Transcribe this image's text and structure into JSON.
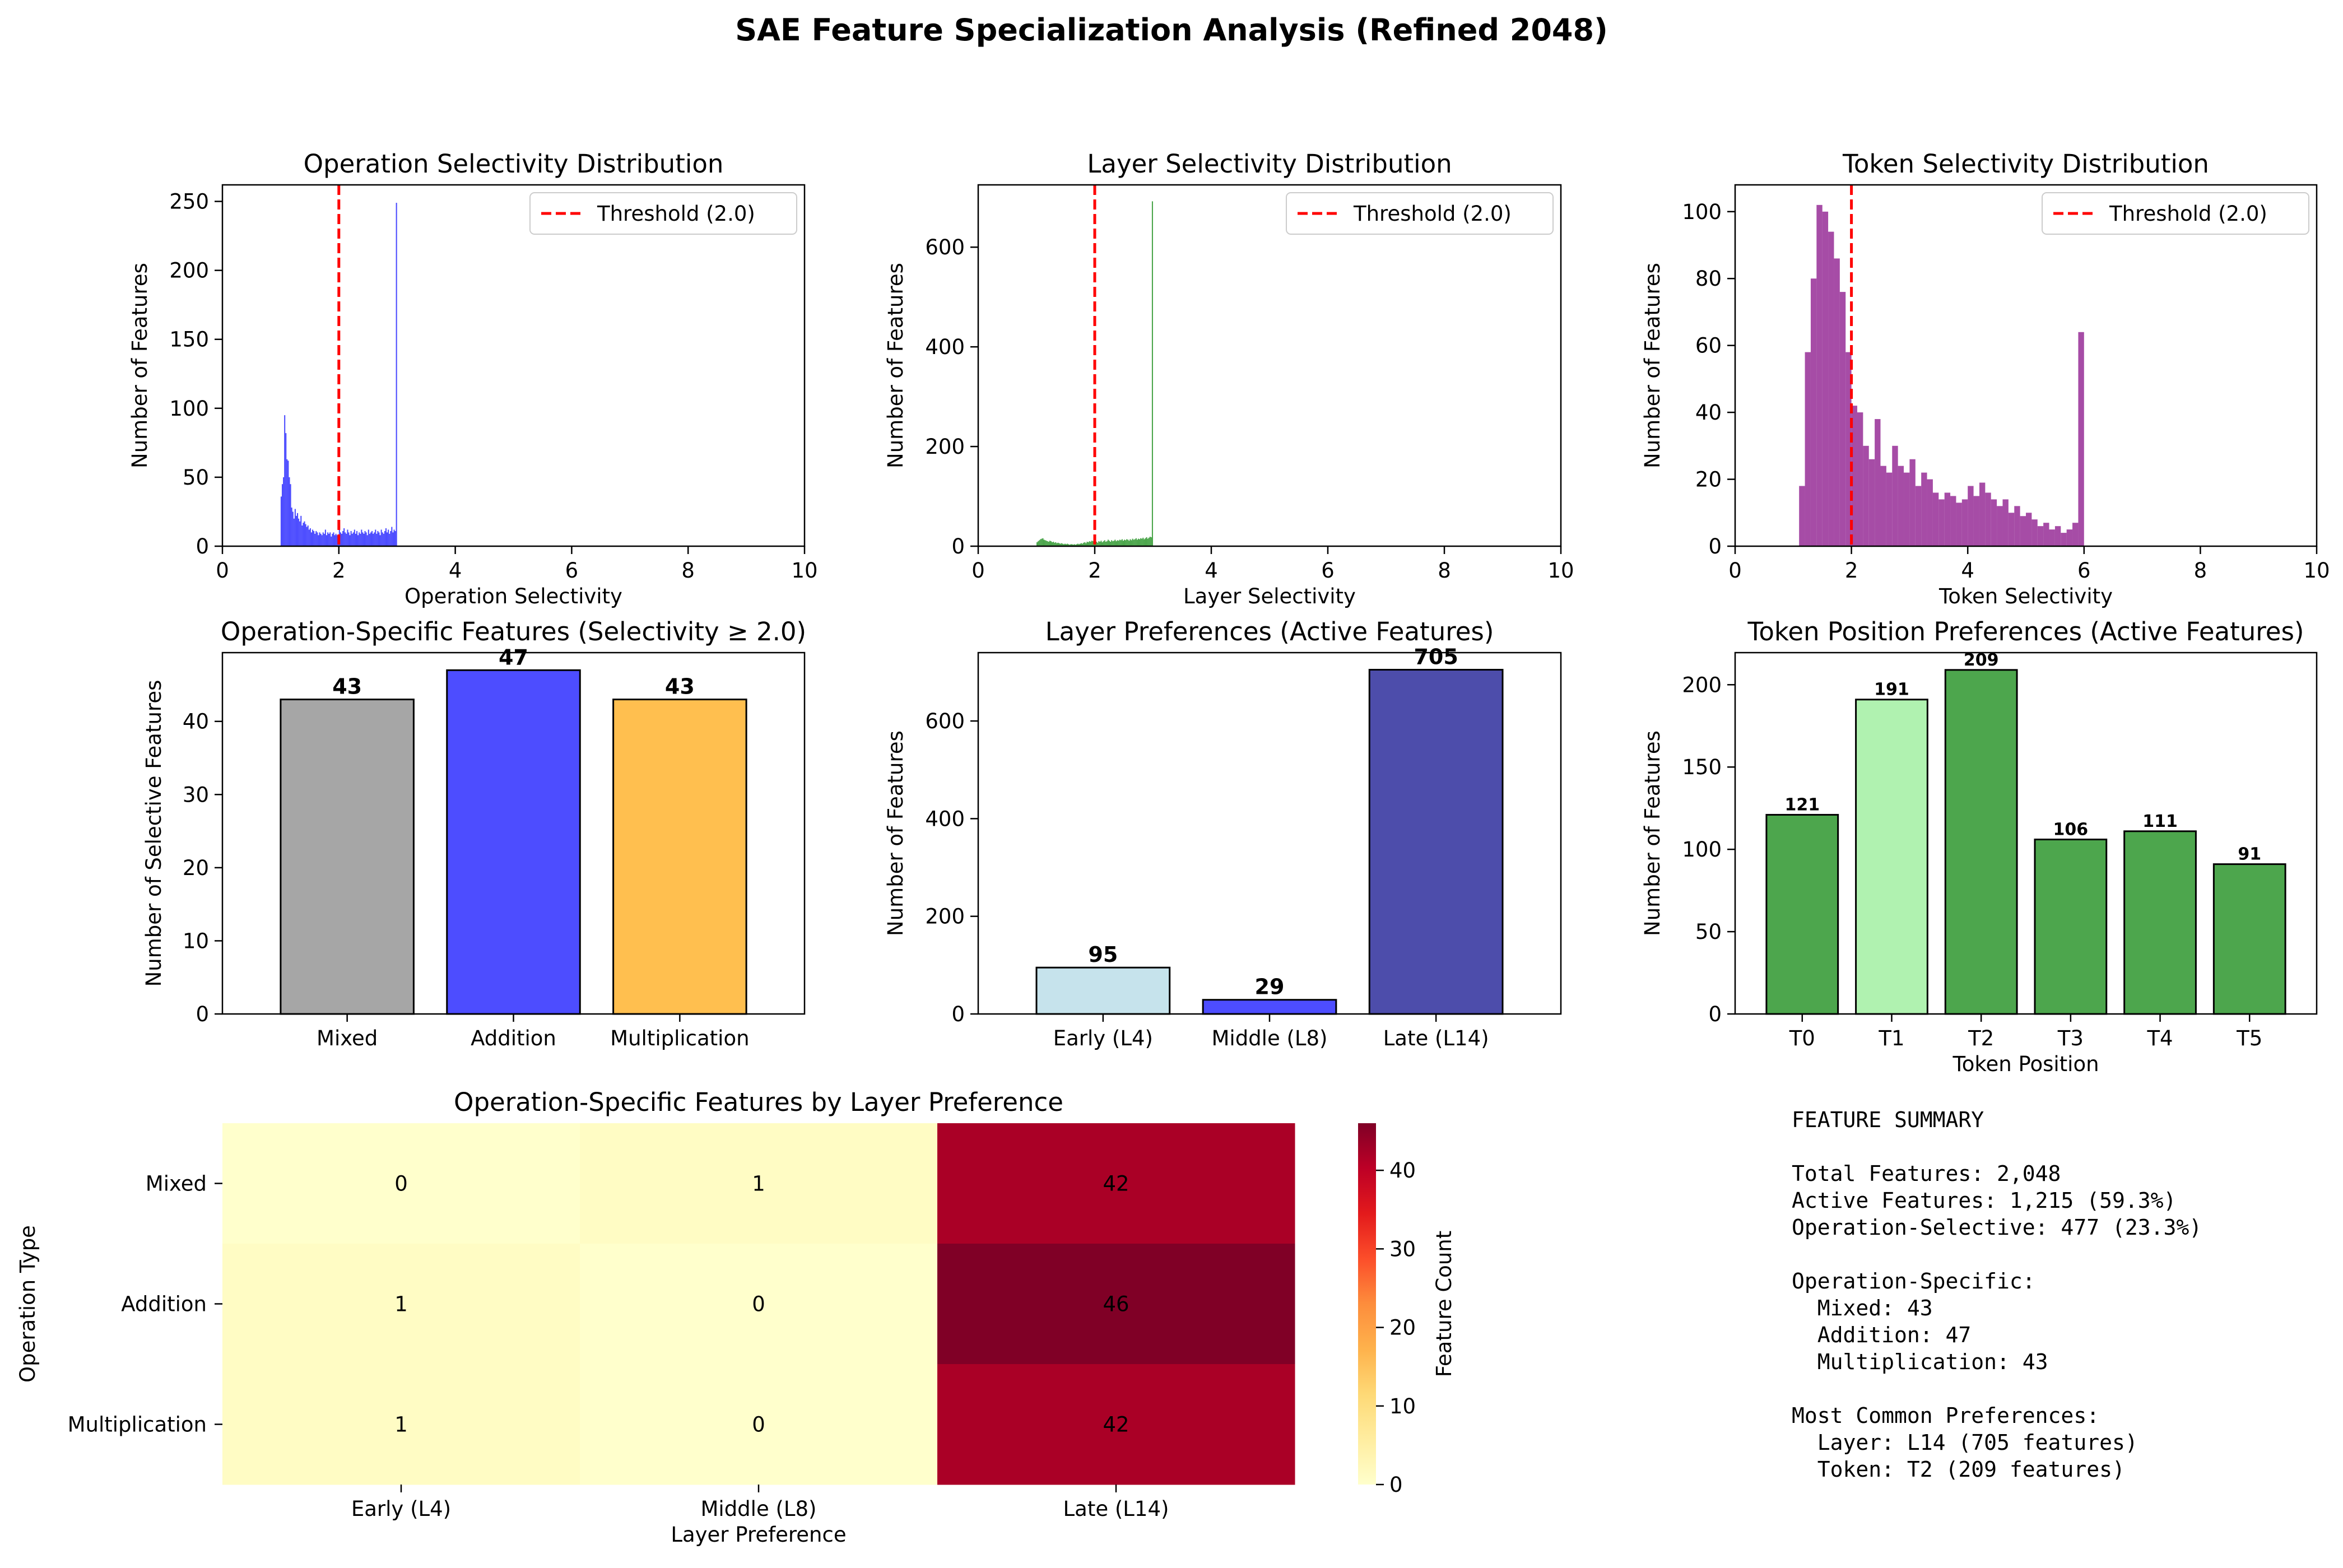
{
  "title": "SAE Feature Specialization Analysis (Refined 2048)",
  "colors": {
    "threshold": "#ff0000",
    "heat_low": "#ffffcc",
    "heat_high": "#800026"
  },
  "chart_data": [
    {
      "type": "bar",
      "subtype": "histogram",
      "title": "Operation Selectivity Distribution",
      "xlabel": "Operation Selectivity",
      "ylabel": "Number of Features",
      "xlim": [
        0,
        10
      ],
      "ylim": [
        0,
        262
      ],
      "xticks": [
        0,
        2,
        4,
        6,
        8,
        10
      ],
      "yticks": [
        0,
        50,
        100,
        150,
        200,
        250
      ],
      "color": "#0000ff",
      "threshold": {
        "x": 2.0,
        "label": "Threshold (2.0)"
      },
      "legend": "top-right",
      "bins": [
        [
          1.0,
          36
        ],
        [
          1.02,
          45
        ],
        [
          1.04,
          50
        ],
        [
          1.06,
          95
        ],
        [
          1.08,
          82
        ],
        [
          1.1,
          63
        ],
        [
          1.12,
          62
        ],
        [
          1.14,
          50
        ],
        [
          1.16,
          45
        ],
        [
          1.18,
          28
        ],
        [
          1.2,
          25
        ],
        [
          1.22,
          20
        ],
        [
          1.24,
          27
        ],
        [
          1.26,
          22
        ],
        [
          1.28,
          24
        ],
        [
          1.3,
          20
        ],
        [
          1.32,
          18
        ],
        [
          1.34,
          22
        ],
        [
          1.36,
          15
        ],
        [
          1.38,
          17
        ],
        [
          1.4,
          18
        ],
        [
          1.42,
          16
        ],
        [
          1.44,
          14
        ],
        [
          1.46,
          15
        ],
        [
          1.48,
          12
        ],
        [
          1.5,
          13
        ],
        [
          1.52,
          10
        ],
        [
          1.54,
          12
        ],
        [
          1.56,
          11
        ],
        [
          1.58,
          9
        ],
        [
          1.6,
          11
        ],
        [
          1.62,
          10
        ],
        [
          1.64,
          8
        ],
        [
          1.66,
          10
        ],
        [
          1.68,
          9
        ],
        [
          1.7,
          8
        ],
        [
          1.72,
          10
        ],
        [
          1.74,
          9
        ],
        [
          1.76,
          12
        ],
        [
          1.78,
          8
        ],
        [
          1.8,
          10
        ],
        [
          1.82,
          9
        ],
        [
          1.84,
          10
        ],
        [
          1.86,
          7
        ],
        [
          1.88,
          9
        ],
        [
          1.9,
          10
        ],
        [
          1.92,
          8
        ],
        [
          1.94,
          9
        ],
        [
          1.96,
          8
        ],
        [
          1.98,
          7
        ],
        [
          2.0,
          12
        ],
        [
          2.02,
          10
        ],
        [
          2.04,
          9
        ],
        [
          2.06,
          11
        ],
        [
          2.08,
          13
        ],
        [
          2.1,
          10
        ],
        [
          2.12,
          9
        ],
        [
          2.14,
          12
        ],
        [
          2.16,
          10
        ],
        [
          2.18,
          8
        ],
        [
          2.2,
          11
        ],
        [
          2.22,
          9
        ],
        [
          2.24,
          10
        ],
        [
          2.26,
          12
        ],
        [
          2.28,
          9
        ],
        [
          2.3,
          11
        ],
        [
          2.32,
          8
        ],
        [
          2.34,
          10
        ],
        [
          2.36,
          9
        ],
        [
          2.38,
          12
        ],
        [
          2.4,
          10
        ],
        [
          2.42,
          9
        ],
        [
          2.44,
          11
        ],
        [
          2.46,
          10
        ],
        [
          2.48,
          8
        ],
        [
          2.5,
          12
        ],
        [
          2.52,
          9
        ],
        [
          2.54,
          10
        ],
        [
          2.56,
          11
        ],
        [
          2.58,
          9
        ],
        [
          2.6,
          10
        ],
        [
          2.62,
          12
        ],
        [
          2.64,
          9
        ],
        [
          2.66,
          11
        ],
        [
          2.68,
          10
        ],
        [
          2.7,
          8
        ],
        [
          2.72,
          12
        ],
        [
          2.74,
          10
        ],
        [
          2.76,
          9
        ],
        [
          2.78,
          11
        ],
        [
          2.8,
          13
        ],
        [
          2.82,
          10
        ],
        [
          2.84,
          12
        ],
        [
          2.86,
          9
        ],
        [
          2.88,
          11
        ],
        [
          2.9,
          14
        ],
        [
          2.92,
          10
        ],
        [
          2.94,
          12
        ],
        [
          2.96,
          11
        ],
        [
          2.98,
          249
        ]
      ]
    },
    {
      "type": "bar",
      "subtype": "histogram",
      "title": "Layer Selectivity Distribution",
      "xlabel": "Layer Selectivity",
      "ylabel": "Number of Features",
      "xlim": [
        0,
        10
      ],
      "ylim": [
        0,
        725
      ],
      "xticks": [
        0,
        2,
        4,
        6,
        8,
        10
      ],
      "yticks": [
        0,
        200,
        400,
        600
      ],
      "color": "#008000",
      "threshold": {
        "x": 2.0,
        "label": "Threshold (2.0)"
      },
      "legend": "top-right",
      "bins": [
        [
          1.0,
          8
        ],
        [
          1.02,
          10
        ],
        [
          1.04,
          12
        ],
        [
          1.06,
          14
        ],
        [
          1.08,
          15
        ],
        [
          1.1,
          16
        ],
        [
          1.12,
          13
        ],
        [
          1.14,
          12
        ],
        [
          1.16,
          11
        ],
        [
          1.18,
          10
        ],
        [
          1.2,
          9
        ],
        [
          1.22,
          11
        ],
        [
          1.24,
          10
        ],
        [
          1.26,
          8
        ],
        [
          1.28,
          9
        ],
        [
          1.3,
          7
        ],
        [
          1.32,
          8
        ],
        [
          1.34,
          6
        ],
        [
          1.36,
          7
        ],
        [
          1.38,
          6
        ],
        [
          1.4,
          5
        ],
        [
          1.42,
          6
        ],
        [
          1.44,
          5
        ],
        [
          1.46,
          4
        ],
        [
          1.48,
          5
        ],
        [
          1.5,
          4
        ],
        [
          1.52,
          5
        ],
        [
          1.54,
          4
        ],
        [
          1.56,
          3
        ],
        [
          1.58,
          4
        ],
        [
          1.6,
          4
        ],
        [
          1.62,
          3
        ],
        [
          1.64,
          4
        ],
        [
          1.66,
          3
        ],
        [
          1.68,
          4
        ],
        [
          1.7,
          5
        ],
        [
          1.72,
          4
        ],
        [
          1.74,
          5
        ],
        [
          1.76,
          6
        ],
        [
          1.78,
          5
        ],
        [
          1.8,
          7
        ],
        [
          1.82,
          8
        ],
        [
          1.84,
          6
        ],
        [
          1.86,
          9
        ],
        [
          1.88,
          8
        ],
        [
          1.9,
          10
        ],
        [
          1.92,
          9
        ],
        [
          1.94,
          11
        ],
        [
          1.96,
          10
        ],
        [
          1.98,
          12
        ],
        [
          2.0,
          8
        ],
        [
          2.02,
          9
        ],
        [
          2.04,
          7
        ],
        [
          2.06,
          10
        ],
        [
          2.08,
          9
        ],
        [
          2.1,
          11
        ],
        [
          2.12,
          8
        ],
        [
          2.14,
          10
        ],
        [
          2.16,
          12
        ],
        [
          2.18,
          9
        ],
        [
          2.2,
          10
        ],
        [
          2.22,
          13
        ],
        [
          2.24,
          11
        ],
        [
          2.26,
          9
        ],
        [
          2.28,
          12
        ],
        [
          2.3,
          10
        ],
        [
          2.32,
          11
        ],
        [
          2.34,
          13
        ],
        [
          2.36,
          10
        ],
        [
          2.38,
          12
        ],
        [
          2.4,
          11
        ],
        [
          2.42,
          13
        ],
        [
          2.44,
          12
        ],
        [
          2.46,
          14
        ],
        [
          2.48,
          11
        ],
        [
          2.5,
          13
        ],
        [
          2.52,
          12
        ],
        [
          2.54,
          14
        ],
        [
          2.56,
          13
        ],
        [
          2.58,
          11
        ],
        [
          2.6,
          14
        ],
        [
          2.62,
          12
        ],
        [
          2.64,
          15
        ],
        [
          2.66,
          13
        ],
        [
          2.68,
          14
        ],
        [
          2.7,
          16
        ],
        [
          2.72,
          13
        ],
        [
          2.74,
          15
        ],
        [
          2.76,
          14
        ],
        [
          2.78,
          16
        ],
        [
          2.8,
          15
        ],
        [
          2.82,
          17
        ],
        [
          2.84,
          14
        ],
        [
          2.86,
          16
        ],
        [
          2.88,
          18
        ],
        [
          2.9,
          15
        ],
        [
          2.92,
          17
        ],
        [
          2.94,
          19
        ],
        [
          2.96,
          18
        ],
        [
          2.98,
          692
        ]
      ]
    },
    {
      "type": "bar",
      "subtype": "histogram",
      "title": "Token Selectivity Distribution",
      "xlabel": "Token Selectivity",
      "ylabel": "Number of Features",
      "xlim": [
        0,
        10
      ],
      "ylim": [
        0,
        108
      ],
      "xticks": [
        0,
        2,
        4,
        6,
        8,
        10
      ],
      "yticks": [
        0,
        20,
        40,
        60,
        80,
        100
      ],
      "color": "#800080",
      "threshold": {
        "x": 2.0,
        "label": "Threshold (2.0)"
      },
      "legend": "top-right",
      "bins": [
        [
          1.1,
          18
        ],
        [
          1.2,
          58
        ],
        [
          1.3,
          80
        ],
        [
          1.4,
          102
        ],
        [
          1.5,
          100
        ],
        [
          1.6,
          94
        ],
        [
          1.7,
          86
        ],
        [
          1.8,
          76
        ],
        [
          1.9,
          58
        ],
        [
          2.0,
          42
        ],
        [
          2.1,
          40
        ],
        [
          2.2,
          30
        ],
        [
          2.3,
          26
        ],
        [
          2.4,
          38
        ],
        [
          2.5,
          24
        ],
        [
          2.6,
          22
        ],
        [
          2.7,
          30
        ],
        [
          2.8,
          24
        ],
        [
          2.9,
          22
        ],
        [
          3.0,
          26
        ],
        [
          3.1,
          18
        ],
        [
          3.2,
          22
        ],
        [
          3.3,
          20
        ],
        [
          3.4,
          16
        ],
        [
          3.5,
          14
        ],
        [
          3.6,
          16
        ],
        [
          3.7,
          15
        ],
        [
          3.8,
          13
        ],
        [
          3.9,
          14
        ],
        [
          4.0,
          18
        ],
        [
          4.1,
          15
        ],
        [
          4.2,
          19
        ],
        [
          4.3,
          16
        ],
        [
          4.4,
          14
        ],
        [
          4.5,
          12
        ],
        [
          4.6,
          14
        ],
        [
          4.7,
          10
        ],
        [
          4.8,
          12
        ],
        [
          4.9,
          9
        ],
        [
          5.0,
          10
        ],
        [
          5.1,
          8
        ],
        [
          5.2,
          6
        ],
        [
          5.3,
          7
        ],
        [
          5.4,
          5
        ],
        [
          5.5,
          6
        ],
        [
          5.6,
          4
        ],
        [
          5.7,
          5
        ],
        [
          5.8,
          7
        ],
        [
          5.9,
          64
        ],
        [
          6.0,
          0
        ]
      ]
    },
    {
      "type": "bar",
      "title": "Operation-Specific Features (Selectivity ≥ 2.0)",
      "xlabel": "",
      "ylabel": "Number of Selective Features",
      "categories": [
        "Mixed",
        "Addition",
        "Multiplication"
      ],
      "values": [
        43,
        47,
        43
      ],
      "colors": [
        "#a6a6a6",
        "#4d4dff",
        "#ffbf4f"
      ],
      "ylim": [
        0,
        49.4
      ],
      "yticks": [
        0,
        10,
        20,
        30,
        40
      ],
      "data_labels": [
        "43",
        "47",
        "43"
      ]
    },
    {
      "type": "bar",
      "title": "Layer Preferences (Active Features)",
      "xlabel": "",
      "ylabel": "Number of Features",
      "categories": [
        "Early (L4)",
        "Middle (L8)",
        "Late (L14)"
      ],
      "values": [
        95,
        29,
        705
      ],
      "colors": [
        "#c6e3ec",
        "#4d4dff",
        "#4d4dab"
      ],
      "ylim": [
        0,
        740
      ],
      "yticks": [
        0,
        200,
        400,
        600
      ],
      "data_labels": [
        "95",
        "29",
        "705"
      ]
    },
    {
      "type": "bar",
      "title": "Token Position Preferences (Active Features)",
      "xlabel": "Token Position",
      "ylabel": "Number of Features",
      "categories": [
        "T0",
        "T1",
        "T2",
        "T3",
        "T4",
        "T5"
      ],
      "values": [
        121,
        191,
        209,
        106,
        111,
        91
      ],
      "colors": [
        "#4da64d",
        "#b0f2b0",
        "#4da64d",
        "#4da64d",
        "#4da64d",
        "#4da64d"
      ],
      "ylim": [
        0,
        219.5
      ],
      "yticks": [
        0,
        50,
        100,
        150,
        200
      ],
      "data_labels": [
        "121",
        "191",
        "209",
        "106",
        "111",
        "91"
      ]
    },
    {
      "type": "heatmap",
      "title": "Operation-Specific Features by Layer Preference",
      "xlabel": "Layer Preference",
      "ylabel": "Operation Type",
      "x": [
        "Early (L4)",
        "Middle (L8)",
        "Late (L14)"
      ],
      "y": [
        "Mixed",
        "Addition",
        "Multiplication"
      ],
      "values": [
        [
          0,
          1,
          42
        ],
        [
          1,
          0,
          46
        ],
        [
          1,
          0,
          42
        ]
      ],
      "colorbar": {
        "label": "Feature Count",
        "range": [
          0,
          46
        ],
        "ticks": [
          0,
          10,
          20,
          30,
          40
        ]
      }
    }
  ],
  "summary": {
    "lines": [
      "FEATURE SUMMARY",
      "",
      "Total Features: 2,048",
      "Active Features: 1,215 (59.3%)",
      "Operation-Selective: 477 (23.3%)",
      "",
      "Operation-Specific:",
      "  Mixed: 43",
      "  Addition: 47",
      "  Multiplication: 43",
      "",
      "Most Common Preferences:",
      "  Layer: L14 (705 features)",
      "  Token: T2 (209 features)"
    ]
  }
}
